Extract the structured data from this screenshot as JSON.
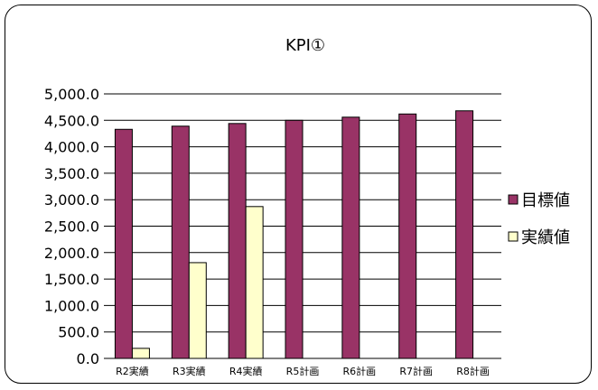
{
  "chart_data": {
    "type": "bar",
    "title": "KPI①",
    "xlabel": "",
    "ylabel": "",
    "categories": [
      "R2実績",
      "R3実績",
      "R4実績",
      "R5計画",
      "R6計画",
      "R7計画",
      "R8計画"
    ],
    "series": [
      {
        "name": "目標値",
        "color": "#993366",
        "values": [
          4330,
          4390,
          4440,
          4500,
          4560,
          4620,
          4680
        ]
      },
      {
        "name": "実績値",
        "color": "#ffffcc",
        "values": [
          190,
          1810,
          2870,
          null,
          null,
          null,
          null
        ]
      }
    ],
    "ylim": [
      0,
      5000
    ],
    "yticks": [
      "0.0",
      "500.0",
      "1,000.0",
      "1,500.0",
      "2,000.0",
      "2,500.0",
      "3,000.0",
      "3,500.0",
      "4,000.0",
      "4,500.0",
      "5,000.0"
    ],
    "grid": true,
    "legend_position": "right"
  }
}
